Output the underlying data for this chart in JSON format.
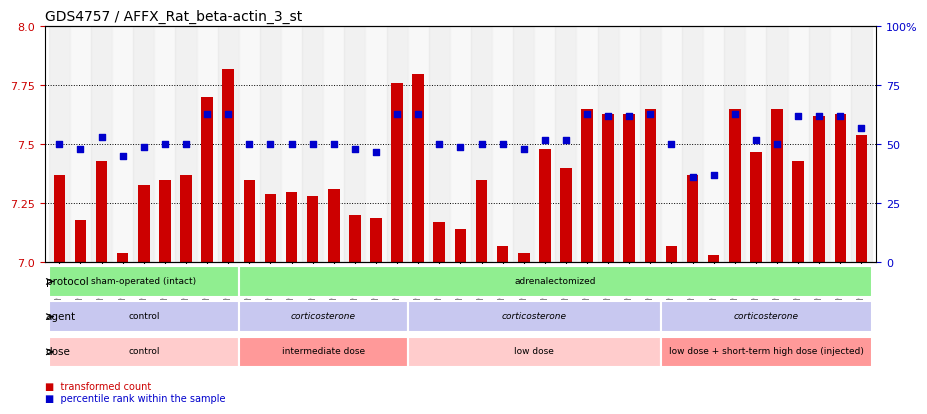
{
  "title": "GDS4757 / AFFX_Rat_beta-actin_3_st",
  "samples": [
    "GSM923289",
    "GSM923290",
    "GSM923291",
    "GSM923292",
    "GSM923293",
    "GSM923294",
    "GSM923295",
    "GSM923296",
    "GSM923297",
    "GSM923298",
    "GSM923299",
    "GSM923300",
    "GSM923301",
    "GSM923302",
    "GSM923303",
    "GSM923304",
    "GSM923305",
    "GSM923306",
    "GSM923307",
    "GSM923308",
    "GSM923309",
    "GSM923310",
    "GSM923311",
    "GSM923312",
    "GSM923313",
    "GSM923314",
    "GSM923315",
    "GSM923316",
    "GSM923317",
    "GSM923318",
    "GSM923319",
    "GSM923320",
    "GSM923321",
    "GSM923322",
    "GSM923323",
    "GSM923324",
    "GSM923325",
    "GSM923326",
    "GSM923327"
  ],
  "bar_values": [
    7.37,
    7.18,
    7.43,
    7.04,
    7.33,
    7.35,
    7.37,
    7.7,
    7.82,
    7.35,
    7.29,
    7.3,
    7.28,
    7.31,
    7.2,
    7.19,
    7.76,
    7.8,
    7.17,
    7.14,
    7.35,
    7.07,
    7.04,
    7.48,
    7.4,
    7.65,
    7.63,
    7.63,
    7.65,
    7.07,
    7.37,
    7.03,
    7.65,
    7.47,
    7.65,
    7.43,
    7.62,
    7.63,
    7.54
  ],
  "percentile_values": [
    50,
    48,
    53,
    45,
    49,
    50,
    50,
    63,
    63,
    50,
    50,
    50,
    50,
    50,
    48,
    47,
    63,
    63,
    50,
    49,
    50,
    50,
    48,
    52,
    52,
    63,
    62,
    62,
    63,
    50,
    36,
    37,
    63,
    52,
    50,
    62,
    62,
    62,
    57
  ],
  "ylim_left": [
    7.0,
    8.0
  ],
  "ylim_right": [
    0,
    100
  ],
  "yticks_left": [
    7.0,
    7.25,
    7.5,
    7.75,
    8.0
  ],
  "yticks_right": [
    0,
    25,
    50,
    75,
    100
  ],
  "bar_color": "#CC0000",
  "marker_color": "#0000CC",
  "background_color": "#ffffff",
  "protocol_groups": [
    {
      "label": "sham-operated (intact)",
      "start": 0,
      "end": 8,
      "color": "#90EE90"
    },
    {
      "label": "adrenalectomized",
      "start": 9,
      "end": 38,
      "color": "#90EE90"
    }
  ],
  "agent_groups": [
    {
      "label": "control",
      "start": 0,
      "end": 8,
      "color": "#C8C8F0"
    },
    {
      "label": "corticosterone",
      "start": 9,
      "end": 16,
      "color": "#C8C8F0"
    },
    {
      "label": "corticosterone",
      "start": 17,
      "end": 28,
      "color": "#C8C8F0"
    },
    {
      "label": "corticosterone",
      "start": 29,
      "end": 38,
      "color": "#C8C8F0"
    }
  ],
  "dose_groups": [
    {
      "label": "control",
      "start": 0,
      "end": 8,
      "color": "#FFCCCC"
    },
    {
      "label": "intermediate dose",
      "start": 9,
      "end": 16,
      "color": "#FF9999"
    },
    {
      "label": "low dose",
      "start": 17,
      "end": 28,
      "color": "#FFCCCC"
    },
    {
      "label": "low dose + short-term high dose (injected)",
      "start": 29,
      "end": 38,
      "color": "#FF9999"
    }
  ],
  "row_labels": [
    "protocol",
    "agent",
    "dose"
  ],
  "legend_labels": [
    "transformed count",
    "percentile rank within the sample"
  ],
  "legend_colors": [
    "#CC0000",
    "#0000CC"
  ]
}
